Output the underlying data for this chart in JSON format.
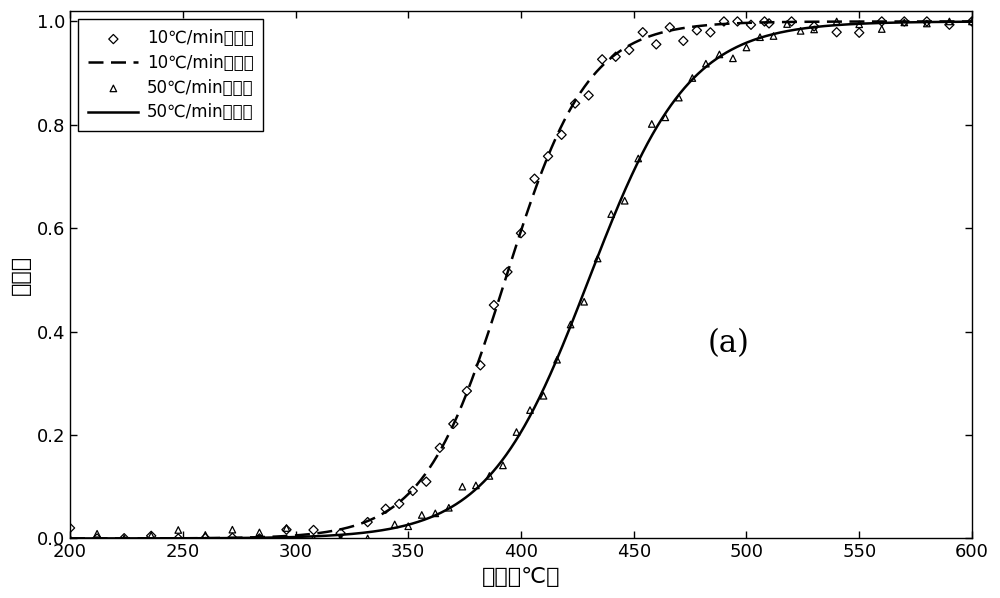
{
  "title": "",
  "xlabel": "温度（℃）",
  "ylabel": "转化率",
  "annotation": "(a)",
  "xlim": [
    200,
    600
  ],
  "ylim": [
    0,
    1.02
  ],
  "yticks": [
    0,
    0.2,
    0.4,
    0.6,
    0.8,
    1.0
  ],
  "xticks": [
    200,
    250,
    300,
    350,
    400,
    450,
    500,
    550,
    600
  ],
  "background_color": "#ffffff",
  "curve_10_params": {
    "T50": 393,
    "k": 0.055
  },
  "curve_50_params": {
    "T50": 430,
    "k": 0.045
  },
  "legend_entries": [
    "10℃/min实验点",
    "10℃/min计算値",
    "50℃/min实验点",
    "50℃/min计算値"
  ],
  "line_color": "#000000",
  "scatter_color": "#000000"
}
